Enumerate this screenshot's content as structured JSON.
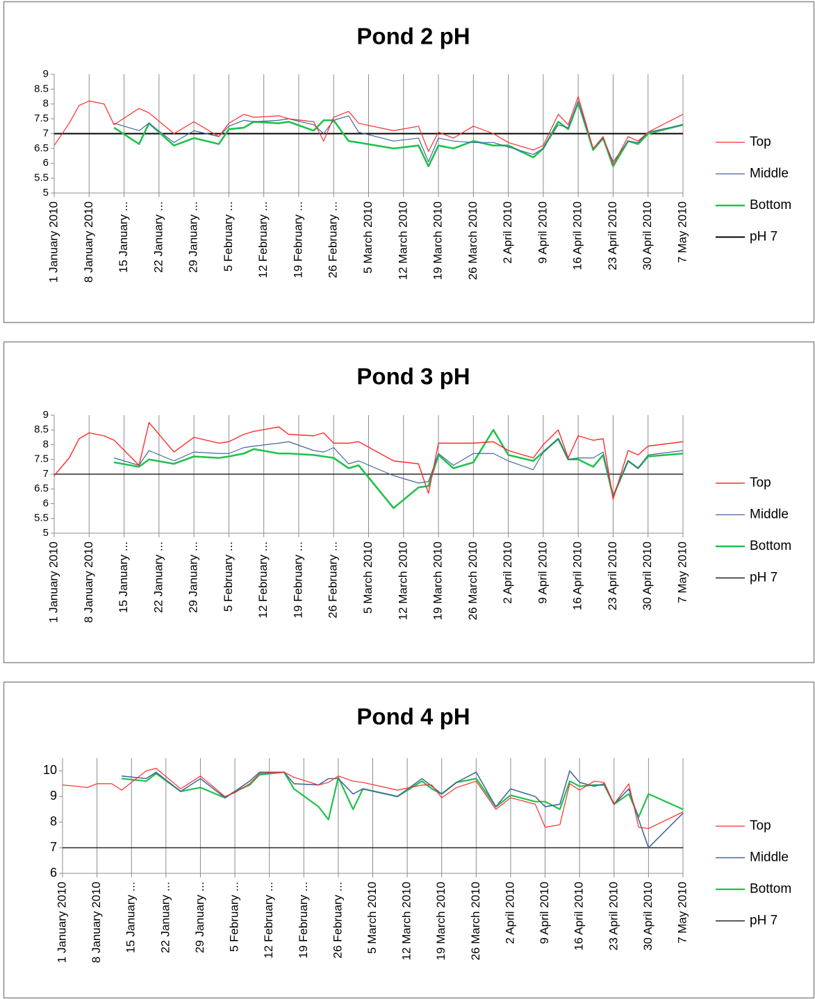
{
  "chart_data": [
    {
      "type": "line",
      "title": "Pond 2 pH",
      "x": [
        "2010-01-01",
        "2010-01-04",
        "2010-01-06",
        "2010-01-08",
        "2010-01-11",
        "2010-01-13",
        "2010-01-18",
        "2010-01-20",
        "2010-01-25",
        "2010-01-29",
        "2010-02-03",
        "2010-02-05",
        "2010-02-08",
        "2010-02-10",
        "2010-02-15",
        "2010-02-17",
        "2010-02-22",
        "2010-02-24",
        "2010-02-26",
        "2010-03-01",
        "2010-03-03",
        "2010-03-10",
        "2010-03-15",
        "2010-03-17",
        "2010-03-19",
        "2010-03-22",
        "2010-03-26",
        "2010-03-30",
        "2010-04-02",
        "2010-04-07",
        "2010-04-09",
        "2010-04-12",
        "2010-04-14",
        "2010-04-16",
        "2010-04-19",
        "2010-04-21",
        "2010-04-23",
        "2010-04-26",
        "2010-04-28",
        "2010-04-30",
        "2010-05-07"
      ],
      "series": [
        {
          "name": "Top",
          "color": "#ff2a2a",
          "width": 1.2,
          "values": [
            6.6,
            7.35,
            7.95,
            8.1,
            8.0,
            7.3,
            7.85,
            7.7,
            7.0,
            7.4,
            6.9,
            7.35,
            7.65,
            7.55,
            7.6,
            7.5,
            7.4,
            6.75,
            7.55,
            7.75,
            7.35,
            7.1,
            7.25,
            6.4,
            7.05,
            6.85,
            7.25,
            7.0,
            6.7,
            6.45,
            6.6,
            7.65,
            7.3,
            8.25,
            6.5,
            6.9,
            5.95,
            6.9,
            6.75,
            7.05,
            7.65
          ]
        },
        {
          "name": "Middle",
          "color": "#44679e",
          "width": 1.2,
          "values": [
            null,
            null,
            null,
            null,
            null,
            7.35,
            7.1,
            7.35,
            6.7,
            7.1,
            6.9,
            7.25,
            7.45,
            7.4,
            7.45,
            7.5,
            7.3,
            7.0,
            7.45,
            7.6,
            7.05,
            6.75,
            6.85,
            6.05,
            6.85,
            6.75,
            6.7,
            6.7,
            6.55,
            6.3,
            6.5,
            7.3,
            7.2,
            8.1,
            6.5,
            6.85,
            6.05,
            6.75,
            6.7,
            7.05,
            7.3
          ]
        },
        {
          "name": "Bottom",
          "color": "#1fc24a",
          "width": 2.6,
          "values": [
            null,
            null,
            null,
            null,
            null,
            7.2,
            6.65,
            7.35,
            6.6,
            6.85,
            6.65,
            7.15,
            7.2,
            7.4,
            7.35,
            7.4,
            7.1,
            7.45,
            7.45,
            6.75,
            6.7,
            6.5,
            6.6,
            5.9,
            6.6,
            6.5,
            6.75,
            6.6,
            6.6,
            6.2,
            6.5,
            7.4,
            7.15,
            8.05,
            6.45,
            6.85,
            5.9,
            6.75,
            6.65,
            7.0,
            7.3
          ]
        },
        {
          "name": "pH 7",
          "color": "#000000",
          "width": 2,
          "values": [
            7,
            7,
            7,
            7,
            7,
            7,
            7,
            7,
            7,
            7,
            7,
            7,
            7,
            7,
            7,
            7,
            7,
            7,
            7,
            7,
            7,
            7,
            7,
            7,
            7,
            7,
            7,
            7,
            7,
            7,
            7,
            7,
            7,
            7,
            7,
            7,
            7,
            7,
            7,
            7,
            7
          ]
        }
      ],
      "xlim": [
        "2010-01-01",
        "2010-05-07"
      ],
      "xticks": [
        {
          "value": "2010-01-01",
          "label": "1 January 2010"
        },
        {
          "value": "2010-01-08",
          "label": "8 January 2010"
        },
        {
          "value": "2010-01-15",
          "label": "15 January ..."
        },
        {
          "value": "2010-01-22",
          "label": "22 January ..."
        },
        {
          "value": "2010-01-29",
          "label": "29 January ..."
        },
        {
          "value": "2010-02-05",
          "label": "5 February ..."
        },
        {
          "value": "2010-02-12",
          "label": "12 February ..."
        },
        {
          "value": "2010-02-19",
          "label": "19 February ..."
        },
        {
          "value": "2010-02-26",
          "label": "26 February ..."
        },
        {
          "value": "2010-03-05",
          "label": "5 March 2010"
        },
        {
          "value": "2010-03-12",
          "label": "12 March 2010"
        },
        {
          "value": "2010-03-19",
          "label": "19 March 2010"
        },
        {
          "value": "2010-03-26",
          "label": "26 March 2010"
        },
        {
          "value": "2010-04-02",
          "label": "2 April 2010"
        },
        {
          "value": "2010-04-09",
          "label": "9 April 2010"
        },
        {
          "value": "2010-04-16",
          "label": "16 April 2010"
        },
        {
          "value": "2010-04-23",
          "label": "23 April 2010"
        },
        {
          "value": "2010-04-30",
          "label": "30 April 2010"
        },
        {
          "value": "2010-05-07",
          "label": "7 May 2010"
        }
      ],
      "ylim": [
        5,
        9
      ],
      "yticks": [
        5,
        5.5,
        6,
        6.5,
        7,
        7.5,
        8,
        8.5,
        9
      ],
      "grid": "x",
      "legend": "right"
    },
    {
      "type": "line",
      "title": "Pond 3 pH",
      "x": [
        "2010-01-01",
        "2010-01-04",
        "2010-01-06",
        "2010-01-08",
        "2010-01-11",
        "2010-01-13",
        "2010-01-18",
        "2010-01-20",
        "2010-01-25",
        "2010-01-29",
        "2010-02-03",
        "2010-02-05",
        "2010-02-08",
        "2010-02-10",
        "2010-02-15",
        "2010-02-17",
        "2010-02-22",
        "2010-02-24",
        "2010-02-26",
        "2010-03-01",
        "2010-03-03",
        "2010-03-10",
        "2010-03-15",
        "2010-03-17",
        "2010-03-19",
        "2010-03-22",
        "2010-03-26",
        "2010-03-30",
        "2010-04-02",
        "2010-04-07",
        "2010-04-09",
        "2010-04-12",
        "2010-04-14",
        "2010-04-16",
        "2010-04-19",
        "2010-04-21",
        "2010-04-23",
        "2010-04-26",
        "2010-04-28",
        "2010-04-30",
        "2010-05-07"
      ],
      "series": [
        {
          "name": "Top",
          "color": "#ff2a2a",
          "width": 1.4,
          "values": [
            6.95,
            7.55,
            8.2,
            8.4,
            8.3,
            8.15,
            7.3,
            8.75,
            7.75,
            8.25,
            8.05,
            8.1,
            8.35,
            8.45,
            8.6,
            8.35,
            8.3,
            8.4,
            8.05,
            8.05,
            8.1,
            7.45,
            7.35,
            6.35,
            8.05,
            8.05,
            8.05,
            8.1,
            7.8,
            7.55,
            8.0,
            8.5,
            7.55,
            8.3,
            8.15,
            8.2,
            6.15,
            7.8,
            7.65,
            7.95,
            8.1
          ]
        },
        {
          "name": "Middle",
          "color": "#44679e",
          "width": 1.2,
          "values": [
            null,
            null,
            null,
            null,
            null,
            7.55,
            7.3,
            7.8,
            7.45,
            7.75,
            7.7,
            7.7,
            7.9,
            7.95,
            8.05,
            8.1,
            7.8,
            7.75,
            7.9,
            7.35,
            7.45,
            6.95,
            6.7,
            6.75,
            7.7,
            7.3,
            7.7,
            7.7,
            7.45,
            7.15,
            7.75,
            8.2,
            7.5,
            7.55,
            7.55,
            7.75,
            6.25,
            7.45,
            7.2,
            7.65,
            7.8
          ]
        },
        {
          "name": "Bottom",
          "color": "#1fc24a",
          "width": 2.6,
          "values": [
            null,
            null,
            null,
            null,
            null,
            7.4,
            7.25,
            7.5,
            7.35,
            7.6,
            7.55,
            7.6,
            7.7,
            7.85,
            7.7,
            7.7,
            7.65,
            7.6,
            7.55,
            7.2,
            7.3,
            5.85,
            6.55,
            6.6,
            7.65,
            7.2,
            7.4,
            8.5,
            7.65,
            7.45,
            7.75,
            8.2,
            7.5,
            7.5,
            7.25,
            7.65,
            6.25,
            7.45,
            7.2,
            7.6,
            7.7
          ]
        },
        {
          "name": "pH 7",
          "color": "#000000",
          "width": 1.2,
          "values": [
            7,
            7,
            7,
            7,
            7,
            7,
            7,
            7,
            7,
            7,
            7,
            7,
            7,
            7,
            7,
            7,
            7,
            7,
            7,
            7,
            7,
            7,
            7,
            7,
            7,
            7,
            7,
            7,
            7,
            7,
            7,
            7,
            7,
            7,
            7,
            7,
            7,
            7,
            7,
            7,
            7
          ]
        }
      ],
      "xlim": [
        "2010-01-01",
        "2010-05-07"
      ],
      "xticks": [
        {
          "value": "2010-01-01",
          "label": "1 January 2010"
        },
        {
          "value": "2010-01-08",
          "label": "8 January 2010"
        },
        {
          "value": "2010-01-15",
          "label": "15 January ..."
        },
        {
          "value": "2010-01-22",
          "label": "22 January ..."
        },
        {
          "value": "2010-01-29",
          "label": "29 January ..."
        },
        {
          "value": "2010-02-05",
          "label": "5 February ..."
        },
        {
          "value": "2010-02-12",
          "label": "12 February ..."
        },
        {
          "value": "2010-02-19",
          "label": "19 February ..."
        },
        {
          "value": "2010-02-26",
          "label": "26 February ..."
        },
        {
          "value": "2010-03-05",
          "label": "5 March 2010"
        },
        {
          "value": "2010-03-12",
          "label": "12 March 2010"
        },
        {
          "value": "2010-03-19",
          "label": "19 March 2010"
        },
        {
          "value": "2010-03-26",
          "label": "26 March 2010"
        },
        {
          "value": "2010-04-02",
          "label": "2 April 2010"
        },
        {
          "value": "2010-04-09",
          "label": "9 April 2010"
        },
        {
          "value": "2010-04-16",
          "label": "16 April 2010"
        },
        {
          "value": "2010-04-23",
          "label": "23 April 2010"
        },
        {
          "value": "2010-04-30",
          "label": "30 April 2010"
        },
        {
          "value": "2010-05-07",
          "label": "7 May 2010"
        }
      ],
      "ylim": [
        5,
        9
      ],
      "yticks": [
        5,
        5.5,
        6,
        6.5,
        7,
        7.5,
        8,
        8.5,
        9
      ],
      "grid": "x",
      "legend": "right"
    },
    {
      "type": "line",
      "title": "Pond 4 pH",
      "x": [
        "2010-01-01",
        "2010-01-04",
        "2010-01-06",
        "2010-01-08",
        "2010-01-11",
        "2010-01-13",
        "2010-01-18",
        "2010-01-20",
        "2010-01-25",
        "2010-01-29",
        "2010-02-03",
        "2010-02-05",
        "2010-02-08",
        "2010-02-10",
        "2010-02-15",
        "2010-02-17",
        "2010-02-22",
        "2010-02-24",
        "2010-02-26",
        "2010-03-01",
        "2010-03-03",
        "2010-03-10",
        "2010-03-15",
        "2010-03-17",
        "2010-03-19",
        "2010-03-22",
        "2010-03-26",
        "2010-03-30",
        "2010-04-02",
        "2010-04-07",
        "2010-04-09",
        "2010-04-12",
        "2010-04-14",
        "2010-04-16",
        "2010-04-19",
        "2010-04-21",
        "2010-04-23",
        "2010-04-26",
        "2010-04-28",
        "2010-04-30",
        "2010-05-07"
      ],
      "series": [
        {
          "name": "Top",
          "color": "#ff2a2a",
          "width": 1.2,
          "values": [
            9.45,
            9.4,
            9.35,
            9.5,
            9.5,
            9.25,
            10.0,
            10.1,
            9.3,
            9.8,
            9.0,
            9.15,
            9.5,
            9.9,
            9.95,
            9.75,
            9.45,
            9.55,
            9.8,
            9.6,
            9.55,
            9.25,
            9.45,
            9.45,
            8.95,
            9.35,
            9.6,
            8.5,
            8.95,
            8.7,
            7.8,
            7.9,
            9.5,
            9.25,
            9.6,
            9.55,
            8.7,
            9.5,
            7.8,
            7.75,
            8.4
          ]
        },
        {
          "name": "Middle",
          "color": "#44679e",
          "width": 1.6,
          "values": [
            null,
            null,
            null,
            null,
            null,
            9.8,
            9.7,
            9.95,
            9.2,
            9.7,
            8.95,
            9.2,
            9.6,
            9.95,
            9.95,
            9.5,
            9.45,
            9.7,
            9.7,
            9.1,
            9.3,
            9.0,
            9.7,
            9.4,
            9.1,
            9.55,
            9.95,
            8.6,
            9.3,
            9.0,
            8.6,
            8.7,
            10.0,
            9.55,
            9.4,
            9.5,
            8.7,
            9.3,
            8.1,
            7.0,
            8.35
          ]
        },
        {
          "name": "Bottom",
          "color": "#1fc24a",
          "width": 2.2,
          "values": [
            null,
            null,
            null,
            null,
            null,
            9.7,
            9.6,
            9.9,
            9.2,
            9.35,
            8.95,
            9.2,
            9.45,
            9.85,
            9.95,
            9.3,
            8.6,
            8.1,
            9.75,
            8.5,
            9.3,
            9.0,
            9.6,
            9.3,
            9.1,
            9.55,
            9.7,
            8.6,
            9.05,
            8.8,
            8.8,
            8.5,
            9.6,
            9.4,
            9.45,
            9.45,
            8.7,
            9.1,
            8.2,
            9.1,
            8.5
          ]
        },
        {
          "name": "pH 7",
          "color": "#000000",
          "width": 1.2,
          "values": [
            7,
            7,
            7,
            7,
            7,
            7,
            7,
            7,
            7,
            7,
            7,
            7,
            7,
            7,
            7,
            7,
            7,
            7,
            7,
            7,
            7,
            7,
            7,
            7,
            7,
            7,
            7,
            7,
            7,
            7,
            7,
            7,
            7,
            7,
            7,
            7,
            7,
            7,
            7,
            7,
            7
          ]
        }
      ],
      "xlim": [
        "2010-01-01",
        "2010-05-07"
      ],
      "xticks": [
        {
          "value": "2010-01-01",
          "label": "1 January 2010"
        },
        {
          "value": "2010-01-08",
          "label": "8 January 2010"
        },
        {
          "value": "2010-01-15",
          "label": "15 January ..."
        },
        {
          "value": "2010-01-22",
          "label": "22 January ..."
        },
        {
          "value": "2010-01-29",
          "label": "29 January ..."
        },
        {
          "value": "2010-02-05",
          "label": "5 February ..."
        },
        {
          "value": "2010-02-12",
          "label": "12 February ..."
        },
        {
          "value": "2010-02-19",
          "label": "19 February ..."
        },
        {
          "value": "2010-02-26",
          "label": "26 February ..."
        },
        {
          "value": "2010-03-05",
          "label": "5 March 2010"
        },
        {
          "value": "2010-03-12",
          "label": "12 March 2010"
        },
        {
          "value": "2010-03-19",
          "label": "19 March 2010"
        },
        {
          "value": "2010-03-26",
          "label": "26 March 2010"
        },
        {
          "value": "2010-04-02",
          "label": "2 April 2010"
        },
        {
          "value": "2010-04-09",
          "label": "9 April 2010"
        },
        {
          "value": "2010-04-16",
          "label": "16 April 2010"
        },
        {
          "value": "2010-04-23",
          "label": "23 April 2010"
        },
        {
          "value": "2010-04-30",
          "label": "30 April 2010"
        },
        {
          "value": "2010-05-07",
          "label": "7 May 2010"
        }
      ],
      "ylim": [
        6,
        10.5
      ],
      "yticks": [
        6,
        7,
        8,
        9,
        10
      ],
      "grid": "x",
      "legend": "right"
    }
  ]
}
